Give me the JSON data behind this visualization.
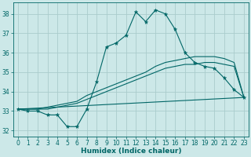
{
  "xlabel": "Humidex (Indice chaleur)",
  "background_color": "#cce8e8",
  "grid_color": "#aacccc",
  "line_color": "#006666",
  "xlim": [
    -0.5,
    23.5
  ],
  "ylim": [
    31.7,
    38.6
  ],
  "yticks": [
    32,
    33,
    34,
    35,
    36,
    37,
    38
  ],
  "xticks": [
    0,
    1,
    2,
    3,
    4,
    5,
    6,
    7,
    8,
    9,
    10,
    11,
    12,
    13,
    14,
    15,
    16,
    17,
    18,
    19,
    20,
    21,
    22,
    23
  ],
  "series_main": {
    "x": [
      0,
      1,
      2,
      3,
      4,
      5,
      6,
      7,
      8,
      9,
      10,
      11,
      12,
      13,
      14,
      15,
      16,
      17,
      18,
      19,
      20,
      21,
      22,
      23
    ],
    "y": [
      33.1,
      33.0,
      33.0,
      32.8,
      32.8,
      32.2,
      32.2,
      33.1,
      34.5,
      36.3,
      36.5,
      36.9,
      38.1,
      37.6,
      38.2,
      38.0,
      37.2,
      36.0,
      35.5,
      35.3,
      35.2,
      34.7,
      34.1,
      33.7
    ]
  },
  "series_flat": {
    "x": [
      0,
      23
    ],
    "y": [
      33.1,
      33.7
    ]
  },
  "series_upper1": {
    "x": [
      0,
      1,
      2,
      3,
      4,
      5,
      6,
      7,
      8,
      9,
      10,
      11,
      12,
      13,
      14,
      15,
      16,
      17,
      18,
      19,
      20,
      21,
      22,
      23
    ],
    "y": [
      33.1,
      33.1,
      33.1,
      33.1,
      33.2,
      33.3,
      33.4,
      33.6,
      33.8,
      34.0,
      34.2,
      34.4,
      34.6,
      34.8,
      35.0,
      35.2,
      35.3,
      35.4,
      35.4,
      35.5,
      35.5,
      35.4,
      35.3,
      33.7
    ]
  },
  "series_upper2": {
    "x": [
      0,
      1,
      2,
      3,
      4,
      5,
      6,
      7,
      8,
      9,
      10,
      11,
      12,
      13,
      14,
      15,
      16,
      17,
      18,
      19,
      20,
      21,
      22,
      23
    ],
    "y": [
      33.1,
      33.1,
      33.1,
      33.2,
      33.3,
      33.4,
      33.5,
      33.8,
      34.0,
      34.2,
      34.4,
      34.6,
      34.8,
      35.0,
      35.3,
      35.5,
      35.6,
      35.7,
      35.8,
      35.8,
      35.8,
      35.7,
      35.5,
      33.7
    ]
  }
}
